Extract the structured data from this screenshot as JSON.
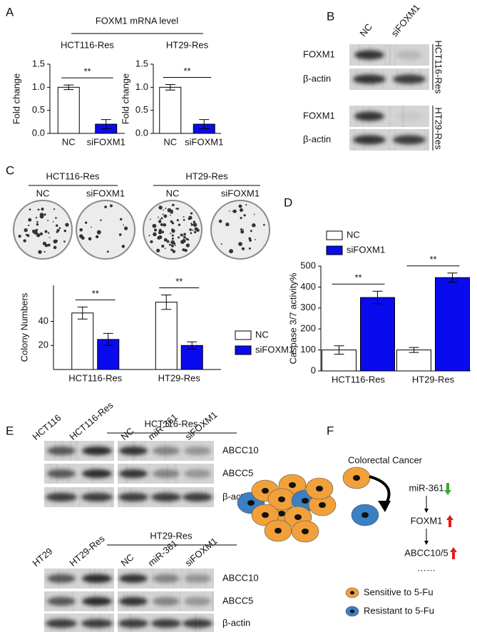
{
  "panels": [
    "A",
    "B",
    "C",
    "D",
    "E",
    "F"
  ],
  "panel_a": {
    "header": "FOXM1 mRNA level"
  },
  "panel_b": {
    "lanes": [
      "NC",
      "siFOXM1"
    ],
    "rows": [
      "FOXM1",
      "β-actin",
      "FOXM1",
      "β-actin"
    ],
    "cell_lines": [
      "HCT116-Res",
      "HT29-Res"
    ]
  },
  "panel_c": {
    "cell_lines": [
      "HCT116-Res",
      "HT29-Res"
    ],
    "lanes": [
      "NC",
      "siFOXM1",
      "NC",
      "siFOXM1"
    ]
  },
  "panel_e": {
    "top": {
      "header": "HCT116-Res",
      "left_lanes": [
        "HCT116",
        "HCT116-Res"
      ],
      "right_lanes": [
        "NC",
        "miR-361",
        "siFOXM1"
      ],
      "rows": [
        "ABCC10",
        "ABCC5",
        "β-actin"
      ]
    },
    "bottom": {
      "header": "HT29-Res",
      "left_lanes": [
        "HT29",
        "HT29-Res"
      ],
      "right_lanes": [
        "NC",
        "miR-361",
        "siFOXM1"
      ],
      "rows": [
        "ABCC10",
        "ABCC5",
        "β-actin"
      ]
    }
  },
  "panel_f": {
    "title": "Colorectal Cancer",
    "steps": [
      "miR-361",
      "FOXM1",
      "ABCC10/5",
      "……"
    ],
    "legend": [
      "Sensitive to 5-Fu",
      "Resistant to 5-Fu"
    ]
  },
  "chart_data": [
    {
      "type": "bar",
      "title": "HCT116-Res",
      "ylabel": "Fold change",
      "categories": [
        "NC",
        "siFOXM1"
      ],
      "values": [
        1.0,
        0.2
      ],
      "errors": [
        0.05,
        0.1
      ],
      "colors": [
        "#ffffff",
        "#0a0aee"
      ],
      "ylim": [
        0,
        1.5
      ],
      "yticks": [
        {
          "value": 0,
          "label": "0.0"
        },
        {
          "value": 0.5,
          "label": "0.5"
        },
        {
          "value": 1,
          "label": "1.0"
        },
        {
          "value": 1.5,
          "label": "1.5"
        }
      ],
      "annotations": [
        "**"
      ]
    },
    {
      "type": "bar",
      "title": "HT29-Res",
      "ylabel": "Fold change",
      "categories": [
        "NC",
        "siFOXM1"
      ],
      "values": [
        1.0,
        0.2
      ],
      "errors": [
        0.06,
        0.1
      ],
      "colors": [
        "#ffffff",
        "#0a0aee"
      ],
      "ylim": [
        0,
        1.5
      ],
      "yticks": [
        {
          "value": 0,
          "label": "0.0"
        },
        {
          "value": 0.5,
          "label": "0.5"
        },
        {
          "value": 1,
          "label": "1.0"
        },
        {
          "value": 1.5,
          "label": "1.5"
        }
      ],
      "annotations": [
        "**"
      ]
    },
    {
      "type": "bar",
      "ylabel": "Colony Numbers",
      "categories": [
        "HCT116-Res",
        "HT29-Res"
      ],
      "series": [
        {
          "name": "NC",
          "color": "#ffffff",
          "values": [
            47,
            56
          ],
          "errors": [
            5,
            6
          ]
        },
        {
          "name": "siFOXM1",
          "color": "#0a0aee",
          "values": [
            25,
            20
          ],
          "errors": [
            5,
            3
          ]
        }
      ],
      "ylim": [
        0,
        70
      ],
      "yticks": [
        20,
        40
      ],
      "legend": "right",
      "annotations": [
        "**",
        "**"
      ]
    },
    {
      "type": "bar",
      "ylabel": "Caspase 3/7 activity%",
      "categories": [
        "HCT116-Res",
        "HT29-Res"
      ],
      "series": [
        {
          "name": "NC",
          "color": "#ffffff",
          "values": [
            100,
            100
          ],
          "errors": [
            20,
            12
          ]
        },
        {
          "name": "siFOXM1",
          "color": "#0a0aee",
          "values": [
            350,
            445
          ],
          "errors": [
            30,
            22
          ]
        }
      ],
      "ylim": [
        0,
        500
      ],
      "yticks": [
        0,
        100,
        200,
        300,
        400,
        500
      ],
      "legend": "upper-left",
      "annotations": [
        "**",
        "**"
      ]
    }
  ]
}
